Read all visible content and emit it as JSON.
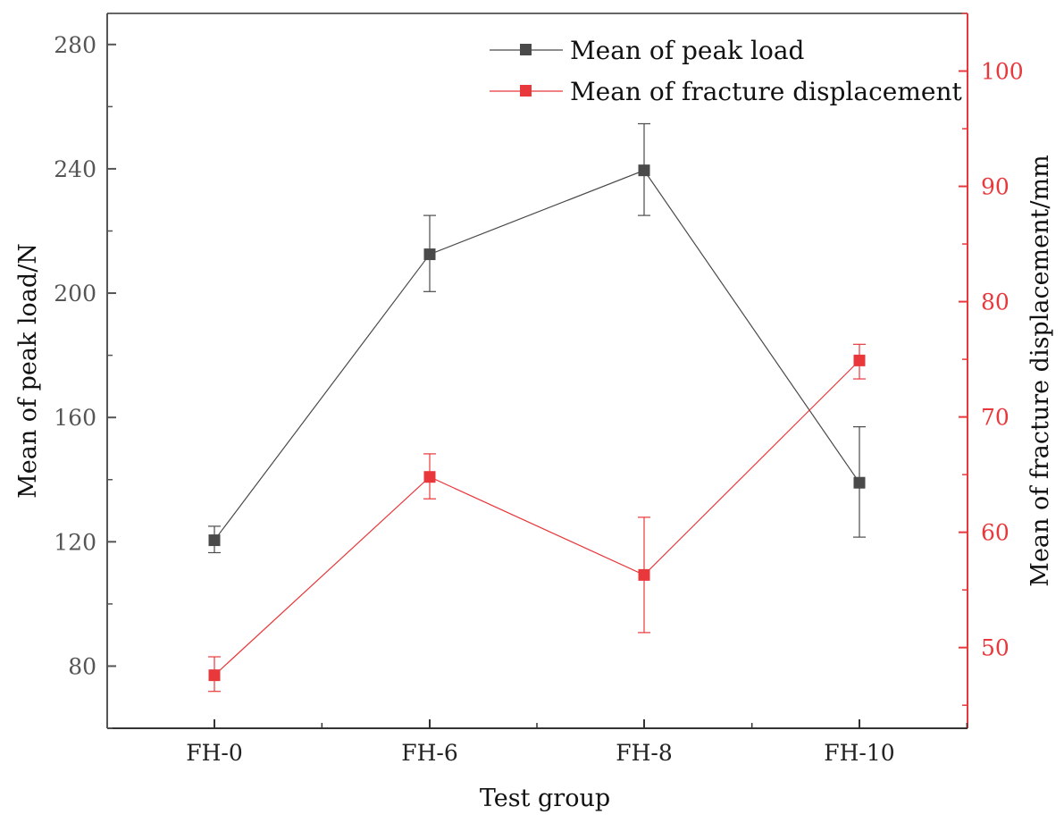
{
  "chart_data": {
    "type": "line",
    "title": "",
    "xlabel": "Test group",
    "ylabel_left": "Mean of peak load/N",
    "ylabel_right": "Mean of fracture displacement/mm",
    "categories": [
      "FH-0",
      "FH-6",
      "FH-8",
      "FH-10"
    ],
    "ylim_left": [
      60,
      290
    ],
    "ylim_right": [
      43,
      105
    ],
    "yticks_left": [
      80,
      120,
      160,
      200,
      240,
      280
    ],
    "yticks_right": [
      50,
      60,
      70,
      80,
      90,
      100
    ],
    "legend_position": "top-right",
    "series": [
      {
        "name": "Mean of peak load",
        "axis": "left",
        "color": "#4a4a4a",
        "values": [
          120.5,
          212.5,
          239.5,
          139
        ],
        "err_low": [
          116.5,
          200.5,
          225,
          121.5
        ],
        "err_high": [
          125,
          225,
          254.5,
          157
        ]
      },
      {
        "name": "Mean of fracture displacement",
        "axis": "right",
        "color": "#e8383b",
        "values": [
          47.6,
          64.8,
          56.3,
          74.9
        ],
        "err_low": [
          46.2,
          62.9,
          51.3,
          73.3
        ],
        "err_high": [
          49.2,
          66.8,
          61.3,
          76.3
        ]
      }
    ]
  }
}
